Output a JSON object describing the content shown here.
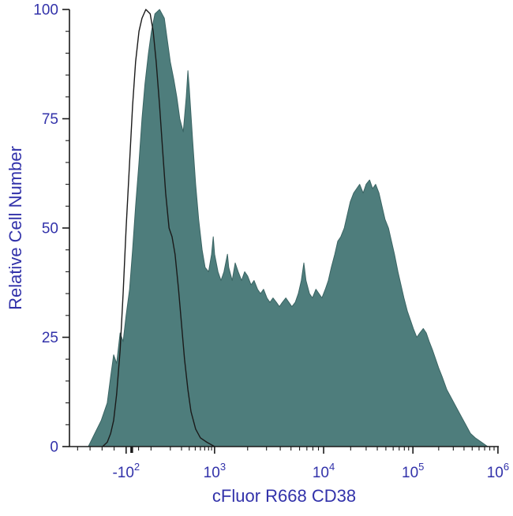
{
  "chart_data": {
    "type": "area",
    "subtype": "flow-cytometry-histogram-overlay",
    "title": "",
    "xlabel": "cFluor R668 CD38",
    "ylabel": "Relative Cell Number",
    "x_scale": "biexponential-log",
    "ylim": [
      0,
      100
    ],
    "y_major_ticks": [
      0,
      25,
      50,
      75,
      100
    ],
    "y_minor_step": 5,
    "x_ticks": [
      {
        "text": "-10",
        "sup": "2",
        "f": 0.132
      },
      {
        "text": "10",
        "sup": "3",
        "f": 0.338
      },
      {
        "text": "10",
        "sup": "4",
        "f": 0.592
      },
      {
        "text": "10",
        "sup": "5",
        "f": 0.8
      },
      {
        "text": "10",
        "sup": "6",
        "f": 0.998
      }
    ],
    "x_minor_ticks_f": [
      0.019,
      0.048,
      0.076,
      0.104,
      0.161,
      0.19,
      0.235,
      0.261,
      0.279,
      0.293,
      0.305,
      0.315,
      0.324,
      0.331,
      0.415,
      0.459,
      0.491,
      0.516,
      0.536,
      0.553,
      0.567,
      0.58,
      0.655,
      0.691,
      0.717,
      0.737,
      0.754,
      0.768,
      0.78,
      0.79,
      0.86,
      0.894,
      0.919,
      0.938,
      0.954,
      0.967,
      0.979,
      0.989
    ],
    "x_zero_tick_f": 0.145,
    "colors": {
      "fill": "#4e7d7c",
      "fill_stroke": "#3a6463",
      "line": "#1a1a1a",
      "axis": "#1a1a1a",
      "label_text": "#3232aa"
    },
    "series": [
      {
        "name": "stained-filled",
        "style": "filled",
        "fill": "#4e7d7c",
        "stroke": "#3a6463",
        "width": 1,
        "points": [
          [
            0.044,
            0
          ],
          [
            0.059,
            3
          ],
          [
            0.074,
            6
          ],
          [
            0.088,
            10
          ],
          [
            0.096,
            16
          ],
          [
            0.103,
            21
          ],
          [
            0.11,
            19
          ],
          [
            0.118,
            26
          ],
          [
            0.125,
            24
          ],
          [
            0.132,
            30
          ],
          [
            0.14,
            36
          ],
          [
            0.147,
            45
          ],
          [
            0.154,
            55
          ],
          [
            0.162,
            65
          ],
          [
            0.169,
            75
          ],
          [
            0.176,
            83
          ],
          [
            0.184,
            90
          ],
          [
            0.191,
            95
          ],
          [
            0.199,
            99
          ],
          [
            0.21,
            100
          ],
          [
            0.221,
            98
          ],
          [
            0.228,
            93
          ],
          [
            0.235,
            88
          ],
          [
            0.243,
            84
          ],
          [
            0.25,
            80
          ],
          [
            0.257,
            75
          ],
          [
            0.265,
            72
          ],
          [
            0.272,
            80
          ],
          [
            0.276,
            86
          ],
          [
            0.279,
            82
          ],
          [
            0.287,
            70
          ],
          [
            0.294,
            60
          ],
          [
            0.301,
            52
          ],
          [
            0.309,
            45
          ],
          [
            0.316,
            41
          ],
          [
            0.324,
            40
          ],
          [
            0.331,
            44
          ],
          [
            0.335,
            48
          ],
          [
            0.338,
            44
          ],
          [
            0.346,
            40
          ],
          [
            0.353,
            38
          ],
          [
            0.36,
            40
          ],
          [
            0.368,
            44
          ],
          [
            0.371,
            41
          ],
          [
            0.379,
            38
          ],
          [
            0.386,
            42
          ],
          [
            0.393,
            40
          ],
          [
            0.401,
            38
          ],
          [
            0.408,
            40
          ],
          [
            0.415,
            39
          ],
          [
            0.423,
            37
          ],
          [
            0.43,
            38
          ],
          [
            0.438,
            36
          ],
          [
            0.445,
            35
          ],
          [
            0.452,
            36
          ],
          [
            0.46,
            34
          ],
          [
            0.467,
            33
          ],
          [
            0.474,
            34
          ],
          [
            0.482,
            33
          ],
          [
            0.489,
            32
          ],
          [
            0.496,
            33
          ],
          [
            0.504,
            34
          ],
          [
            0.511,
            33
          ],
          [
            0.518,
            32
          ],
          [
            0.526,
            33
          ],
          [
            0.533,
            35
          ],
          [
            0.54,
            38
          ],
          [
            0.546,
            42
          ],
          [
            0.551,
            38
          ],
          [
            0.559,
            35
          ],
          [
            0.566,
            34
          ],
          [
            0.574,
            36
          ],
          [
            0.581,
            35
          ],
          [
            0.588,
            34
          ],
          [
            0.596,
            36
          ],
          [
            0.603,
            38
          ],
          [
            0.61,
            41
          ],
          [
            0.618,
            44
          ],
          [
            0.625,
            47
          ],
          [
            0.632,
            48
          ],
          [
            0.64,
            50
          ],
          [
            0.647,
            53
          ],
          [
            0.654,
            56
          ],
          [
            0.662,
            58
          ],
          [
            0.669,
            59
          ],
          [
            0.676,
            60
          ],
          [
            0.684,
            58
          ],
          [
            0.691,
            60
          ],
          [
            0.699,
            61
          ],
          [
            0.706,
            59
          ],
          [
            0.713,
            60
          ],
          [
            0.721,
            58
          ],
          [
            0.728,
            55
          ],
          [
            0.735,
            52
          ],
          [
            0.743,
            50
          ],
          [
            0.75,
            47
          ],
          [
            0.757,
            44
          ],
          [
            0.765,
            40
          ],
          [
            0.772,
            37
          ],
          [
            0.779,
            34
          ],
          [
            0.787,
            31
          ],
          [
            0.794,
            29
          ],
          [
            0.801,
            27
          ],
          [
            0.809,
            25
          ],
          [
            0.816,
            26
          ],
          [
            0.824,
            27
          ],
          [
            0.831,
            26
          ],
          [
            0.838,
            24
          ],
          [
            0.846,
            22
          ],
          [
            0.853,
            20
          ],
          [
            0.86,
            18
          ],
          [
            0.868,
            16
          ],
          [
            0.879,
            13
          ],
          [
            0.89,
            11
          ],
          [
            0.901,
            9
          ],
          [
            0.912,
            7
          ],
          [
            0.923,
            5
          ],
          [
            0.934,
            3
          ],
          [
            0.945,
            2
          ],
          [
            0.96,
            1
          ],
          [
            0.974,
            0
          ]
        ]
      },
      {
        "name": "control-outline",
        "style": "line",
        "fill": "none",
        "stroke": "#1a1a1a",
        "width": 1.4,
        "points": [
          [
            0.077,
            0
          ],
          [
            0.088,
            1
          ],
          [
            0.096,
            3
          ],
          [
            0.103,
            6
          ],
          [
            0.11,
            12
          ],
          [
            0.118,
            22
          ],
          [
            0.125,
            35
          ],
          [
            0.132,
            50
          ],
          [
            0.14,
            65
          ],
          [
            0.147,
            78
          ],
          [
            0.154,
            88
          ],
          [
            0.162,
            95
          ],
          [
            0.169,
            98
          ],
          [
            0.178,
            100
          ],
          [
            0.188,
            99
          ],
          [
            0.195,
            95
          ],
          [
            0.202,
            88
          ],
          [
            0.21,
            78
          ],
          [
            0.217,
            68
          ],
          [
            0.224,
            58
          ],
          [
            0.232,
            50
          ],
          [
            0.239,
            48
          ],
          [
            0.246,
            44
          ],
          [
            0.254,
            36
          ],
          [
            0.261,
            28
          ],
          [
            0.268,
            20
          ],
          [
            0.276,
            13
          ],
          [
            0.283,
            8
          ],
          [
            0.294,
            4
          ],
          [
            0.305,
            2
          ],
          [
            0.32,
            1
          ],
          [
            0.338,
            0
          ]
        ]
      }
    ]
  }
}
